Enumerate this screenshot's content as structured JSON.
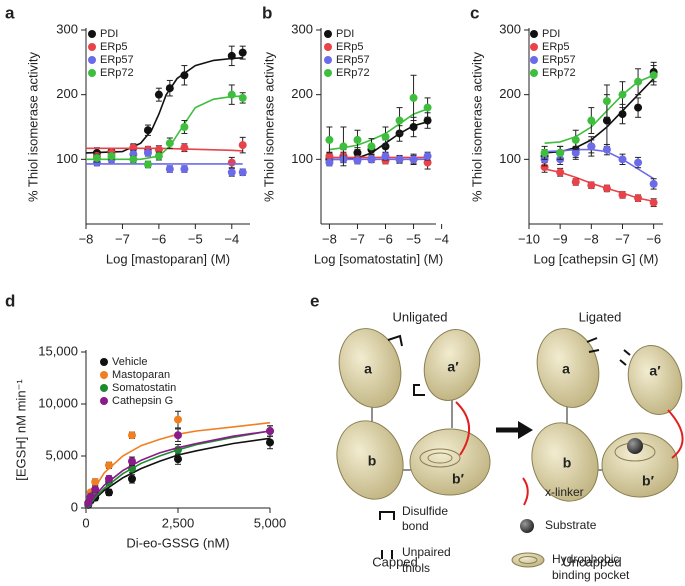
{
  "chart_data": [
    {
      "type": "scatter",
      "panel_label": "a",
      "x_label": "Log [mastoparan] (M)",
      "y_label": "% Thiol isomerase activity",
      "xlim": [
        -8,
        -3.5
      ],
      "ylim": [
        0,
        300
      ],
      "xticks": [
        {
          "value": -8,
          "label": "−8"
        },
        {
          "value": -7,
          "label": "−7"
        },
        {
          "value": -6,
          "label": "−6"
        },
        {
          "value": -5,
          "label": "−5"
        },
        {
          "value": -4,
          "label": "−4"
        }
      ],
      "yticks": [
        100,
        200,
        300
      ],
      "series": [
        {
          "name": "PDI",
          "color": "#111111",
          "x": [
            -7.7,
            -7.3,
            -6.7,
            -6.3,
            -6,
            -5.7,
            -5.3,
            -4,
            -3.7
          ],
          "values": [
            110,
            112,
            118,
            145,
            200,
            210,
            230,
            260,
            265
          ],
          "errors": [
            8,
            5,
            6,
            8,
            10,
            12,
            15,
            15,
            10
          ],
          "fit_x": [
            -8,
            -7,
            -6.5,
            -6.2,
            -6,
            -5.8,
            -5.5,
            -5,
            -4.5,
            -4,
            -3.7
          ],
          "fit_values": [
            110,
            112,
            125,
            145,
            170,
            200,
            225,
            245,
            253,
            256,
            257
          ]
        },
        {
          "name": "ERp5",
          "color": "#e8434a",
          "x": [
            -7.7,
            -7.3,
            -6.7,
            -6.3,
            -6,
            -5.3,
            -4,
            -3.7
          ],
          "values": [
            105,
            110,
            118,
            115,
            115,
            118,
            95,
            122
          ],
          "errors": [
            6,
            5,
            5,
            5,
            6,
            6,
            8,
            12
          ],
          "fit_x": [
            -8,
            -6,
            -4,
            -3.7
          ],
          "fit_values": [
            117,
            117,
            114,
            113
          ]
        },
        {
          "name": "ERp57",
          "color": "#6b6bea",
          "x": [
            -7.7,
            -7.3,
            -6.7,
            -6.3,
            -5.7,
            -5.3,
            -4,
            -3.7
          ],
          "values": [
            95,
            100,
            108,
            110,
            85,
            85,
            80,
            80
          ],
          "errors": [
            5,
            5,
            6,
            5,
            5,
            5,
            6,
            5
          ],
          "fit_x": [
            -8,
            -3.7
          ],
          "fit_values": [
            93,
            93
          ]
        },
        {
          "name": "ERp72",
          "color": "#3dbf3d",
          "x": [
            -7.7,
            -7.3,
            -6.7,
            -6.3,
            -6,
            -5.7,
            -5.3,
            -4,
            -3.7
          ],
          "values": [
            102,
            105,
            100,
            92,
            105,
            125,
            150,
            200,
            195
          ],
          "errors": [
            6,
            5,
            5,
            5,
            6,
            8,
            10,
            15,
            8
          ],
          "fit_x": [
            -8,
            -6.5,
            -6,
            -5.7,
            -5.3,
            -5,
            -4.5,
            -4,
            -3.7
          ],
          "fit_values": [
            100,
            100,
            105,
            120,
            155,
            180,
            193,
            197,
            198
          ]
        }
      ]
    },
    {
      "type": "scatter",
      "panel_label": "b",
      "x_label": "Log [somatostatin] (M)",
      "y_label": "% Thiol isomerase activity",
      "xlim": [
        -8.3,
        -4.2
      ],
      "ylim": [
        0,
        300
      ],
      "xticks": [
        {
          "value": -8,
          "label": "−8"
        },
        {
          "value": -7,
          "label": "−7"
        },
        {
          "value": -6,
          "label": "−6"
        },
        {
          "value": -5,
          "label": "−5"
        },
        {
          "value": -4,
          "label": "−4"
        }
      ],
      "yticks": [
        100,
        200,
        300
      ],
      "series": [
        {
          "name": "PDI",
          "color": "#111111",
          "x": [
            -8,
            -7.5,
            -7,
            -6.5,
            -6,
            -5.5,
            -5,
            -4.5
          ],
          "values": [
            100,
            105,
            110,
            115,
            120,
            140,
            150,
            160
          ],
          "errors": [
            8,
            10,
            8,
            8,
            10,
            12,
            15,
            12
          ],
          "fit_x": [
            -8,
            -7.5,
            -7,
            -6.5,
            -6,
            -5.5,
            -5,
            -4.5
          ],
          "fit_values": [
            100,
            100,
            102,
            110,
            125,
            140,
            152,
            158
          ]
        },
        {
          "name": "ERp5",
          "color": "#e8434a",
          "x": [
            -8,
            -7.5,
            -7,
            -6.5,
            -6,
            -5.5,
            -5,
            -4.5
          ],
          "values": [
            105,
            105,
            100,
            100,
            98,
            100,
            100,
            95
          ],
          "errors": [
            6,
            6,
            5,
            5,
            5,
            6,
            6,
            10
          ],
          "fit_x": [
            -8,
            -4.5
          ],
          "fit_values": [
            103,
            103
          ]
        },
        {
          "name": "ERp57",
          "color": "#6b6bea",
          "x": [
            -8,
            -7.5,
            -7,
            -6.5,
            -6,
            -5.5,
            -5,
            -4.5
          ],
          "values": [
            95,
            100,
            98,
            100,
            105,
            100,
            100,
            105
          ],
          "errors": [
            5,
            5,
            5,
            5,
            6,
            5,
            8,
            6
          ],
          "fit_x": [
            -8,
            -4.5
          ],
          "fit_values": [
            100,
            100
          ]
        },
        {
          "name": "ERp72",
          "color": "#3dbf3d",
          "x": [
            -8,
            -7.5,
            -7,
            -6.5,
            -6,
            -5.5,
            -5,
            -4.5
          ],
          "values": [
            130,
            120,
            130,
            120,
            135,
            160,
            195,
            180
          ],
          "errors": [
            20,
            30,
            15,
            12,
            15,
            20,
            35,
            15
          ],
          "fit_x": [
            -8,
            -7.5,
            -7,
            -6.5,
            -6,
            -5.5,
            -5,
            -4.5
          ],
          "fit_values": [
            115,
            118,
            122,
            130,
            140,
            155,
            170,
            178
          ]
        }
      ]
    },
    {
      "type": "scatter",
      "panel_label": "c",
      "x_label": "Log [cathepsin G] (M)",
      "y_label": "% Thiol isomerase activity",
      "xlim": [
        -10,
        -5.7
      ],
      "ylim": [
        0,
        300
      ],
      "xticks": [
        {
          "value": -10,
          "label": "−10"
        },
        {
          "value": -9,
          "label": "−9"
        },
        {
          "value": -8,
          "label": "−8"
        },
        {
          "value": -7,
          "label": "−7"
        },
        {
          "value": -6,
          "label": "−6"
        }
      ],
      "yticks": [
        100,
        200,
        300
      ],
      "series": [
        {
          "name": "PDI",
          "color": "#111111",
          "x": [
            -9.5,
            -9,
            -8.5,
            -8,
            -7.5,
            -7,
            -6.5,
            -6
          ],
          "values": [
            105,
            110,
            115,
            120,
            160,
            170,
            180,
            235
          ],
          "errors": [
            10,
            10,
            12,
            15,
            40,
            15,
            15,
            15
          ],
          "fit_x": [
            -9.5,
            -9,
            -8.5,
            -8,
            -7.5,
            -7,
            -6.5,
            -6
          ],
          "fit_values": [
            110,
            112,
            118,
            130,
            150,
            175,
            200,
            225
          ]
        },
        {
          "name": "ERp5",
          "color": "#e8434a",
          "x": [
            -9.5,
            -9,
            -8.5,
            -8,
            -7.5,
            -7,
            -6.5,
            -6
          ],
          "values": [
            88,
            80,
            65,
            60,
            55,
            45,
            40,
            33
          ],
          "errors": [
            8,
            6,
            5,
            5,
            5,
            5,
            5,
            6
          ],
          "fit_x": [
            -9.5,
            -9,
            -8.5,
            -8,
            -7.5,
            -7,
            -6.5,
            -6
          ],
          "fit_values": [
            85,
            80,
            72,
            63,
            55,
            48,
            40,
            35
          ]
        },
        {
          "name": "ERp57",
          "color": "#6b6bea",
          "x": [
            -9.5,
            -9,
            -8.5,
            -8,
            -7.5,
            -7,
            -6.5,
            -6
          ],
          "values": [
            100,
            100,
            110,
            120,
            115,
            100,
            95,
            62
          ],
          "errors": [
            10,
            8,
            10,
            10,
            8,
            8,
            8,
            8
          ],
          "fit_x": [
            -9.5,
            -9,
            -8.5,
            -8,
            -7.5,
            -7,
            -6.5,
            -6
          ],
          "fit_values": [
            112,
            113,
            115,
            115,
            112,
            100,
            85,
            70
          ]
        },
        {
          "name": "ERp72",
          "color": "#3dbf3d",
          "x": [
            -9.5,
            -9,
            -8.5,
            -8,
            -7.5,
            -7,
            -6.5,
            -6
          ],
          "values": [
            110,
            110,
            130,
            160,
            190,
            200,
            220,
            230
          ],
          "errors": [
            10,
            10,
            15,
            20,
            25,
            20,
            20,
            15
          ],
          "fit_x": [
            -9.5,
            -9,
            -8.5,
            -8,
            -7.5,
            -7,
            -6.5,
            -6
          ],
          "fit_values": [
            125,
            127,
            135,
            150,
            175,
            200,
            220,
            230
          ]
        }
      ]
    },
    {
      "type": "scatter",
      "panel_label": "d",
      "x_label": "Di-eo-GSSG (nM)",
      "y_label": "[EGSH] nM min⁻¹",
      "xlim": [
        0,
        5000
      ],
      "ylim": [
        0,
        15000
      ],
      "xticks": [
        0,
        {
          "value": 2500,
          "label": "2,500"
        },
        {
          "value": 5000,
          "label": "5,000"
        }
      ],
      "yticks": [
        0,
        {
          "value": 5000,
          "label": "5,000"
        },
        {
          "value": 10000,
          "label": "10,000"
        },
        {
          "value": 15000,
          "label": "15,000"
        }
      ],
      "series": [
        {
          "name": "Vehicle",
          "color": "#111111",
          "x": [
            62,
            125,
            250,
            625,
            1250,
            2500,
            5000
          ],
          "values": [
            300,
            700,
            1000,
            1500,
            2800,
            4700,
            6300
          ],
          "errors": [
            200,
            200,
            300,
            300,
            400,
            500,
            600
          ],
          "fit_x": [
            0,
            250,
            500,
            1000,
            1500,
            2000,
            2500,
            3000,
            4000,
            5000
          ],
          "fit_values": [
            0,
            900,
            1700,
            2900,
            3800,
            4500,
            5100,
            5500,
            6200,
            6700
          ]
        },
        {
          "name": "Mastoparan",
          "color": "#f07f22",
          "x": [
            62,
            125,
            250,
            625,
            1250,
            2500,
            5000
          ],
          "values": [
            500,
            1500,
            2500,
            4100,
            7000,
            8500,
            null
          ],
          "errors": [
            200,
            200,
            300,
            300,
            300,
            800,
            null
          ],
          "fit_x": [
            0,
            250,
            500,
            1000,
            1500,
            2000,
            2500,
            3000,
            4000,
            5000
          ],
          "fit_values": [
            0,
            2000,
            3400,
            5000,
            6000,
            6600,
            7100,
            7400,
            7800,
            8200
          ]
        },
        {
          "name": "Somatostatin",
          "color": "#1e8a2e",
          "x": [
            62,
            125,
            250,
            625,
            1250,
            2500,
            5000
          ],
          "values": [
            400,
            900,
            1500,
            2500,
            3800,
            5600,
            7400
          ],
          "errors": [
            200,
            200,
            300,
            300,
            400,
            500,
            500
          ],
          "fit_x": [
            0,
            250,
            500,
            1000,
            1500,
            2000,
            2500,
            3000,
            4000,
            5000
          ],
          "fit_values": [
            0,
            1000,
            1900,
            3300,
            4300,
            5000,
            5600,
            6100,
            6800,
            7400
          ]
        },
        {
          "name": "Cathepsin G",
          "color": "#8b1a8b",
          "x": [
            62,
            125,
            250,
            625,
            1250,
            2500,
            5000
          ],
          "values": [
            500,
            1100,
            1800,
            2800,
            4500,
            7000,
            7400
          ],
          "errors": [
            200,
            200,
            300,
            300,
            400,
            600,
            500
          ],
          "fit_x": [
            0,
            250,
            500,
            1000,
            1500,
            2000,
            2500,
            3000,
            4000,
            5000
          ],
          "fit_values": [
            0,
            1200,
            2200,
            3600,
            4600,
            5300,
            5800,
            6200,
            6900,
            7400
          ]
        }
      ]
    }
  ],
  "diagram": {
    "panel_label": "e",
    "unligated": "Unligated",
    "ligated": "Ligated",
    "capped": "Capped",
    "uncapped": "Uncapped",
    "domains": [
      "a",
      "a′",
      "b",
      "b′"
    ],
    "legend": {
      "disulfide": [
        "Disulfide",
        "bond"
      ],
      "unpaired": [
        "Unpaired",
        "thiols"
      ],
      "xlinker": "x-linker",
      "substrate": "Substrate",
      "pocket": [
        "Hydrophobic",
        "binding pocket"
      ]
    }
  }
}
